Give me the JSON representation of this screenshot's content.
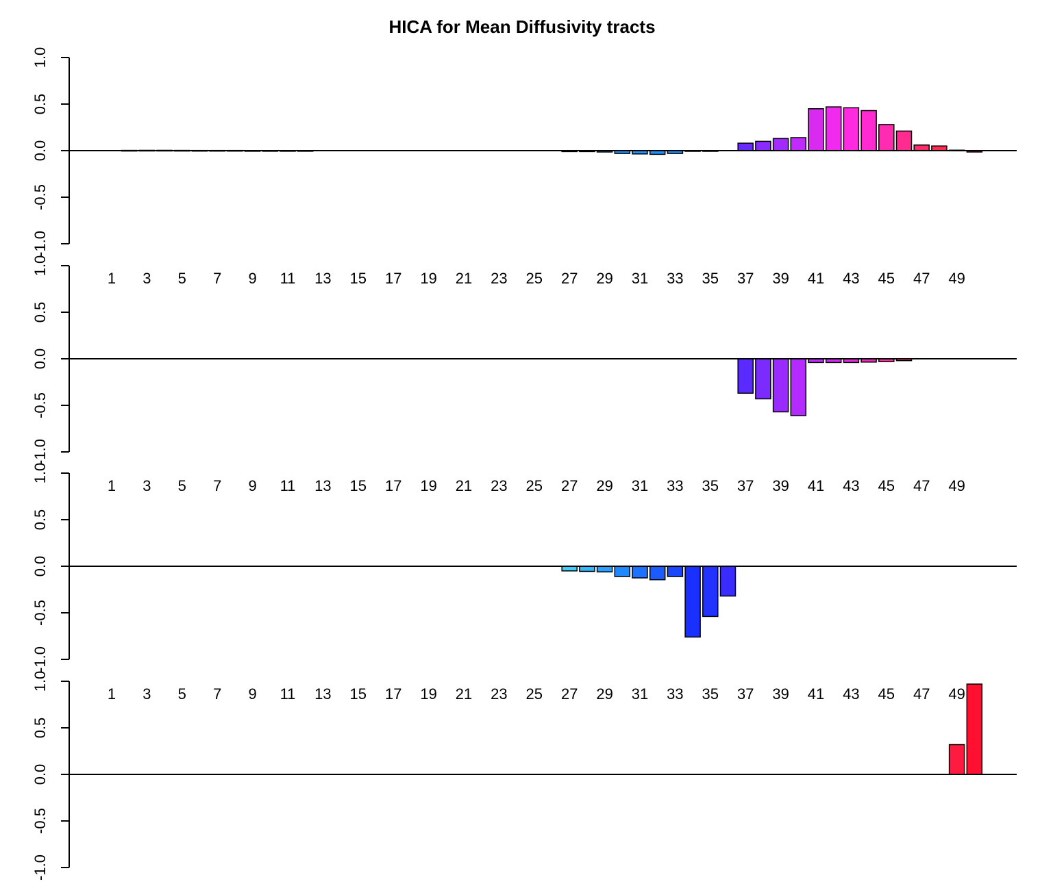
{
  "chart_data": {
    "type": "bar",
    "title": "HICA for  Mean Diffusivity tracts",
    "xlabel": "",
    "ylabel": "",
    "ylim": [
      -1.0,
      1.0
    ],
    "yticks": [
      "-1.0",
      "-0.5",
      "0.0",
      "0.5",
      "1.0"
    ],
    "x_tick_labels": [
      "1",
      "3",
      "5",
      "7",
      "9",
      "11",
      "13",
      "15",
      "17",
      "19",
      "21",
      "23",
      "25",
      "27",
      "29",
      "31",
      "33",
      "35",
      "37",
      "39",
      "41",
      "43",
      "45",
      "47",
      "49"
    ],
    "grid": false,
    "legend": "none",
    "panels": [
      {
        "name": "",
        "values": [
          0,
          0.003,
          0.004,
          0.004,
          0.003,
          0.002,
          0.002,
          0.002,
          0.001,
          0.001,
          0.001,
          0.001,
          0,
          0,
          0,
          0,
          0,
          0,
          0,
          0,
          0,
          0,
          0,
          0,
          0,
          0,
          -0.01,
          -0.01,
          -0.015,
          -0.03,
          -0.035,
          -0.04,
          -0.03,
          -0.005,
          -0.005,
          0,
          0.08,
          0.1,
          0.13,
          0.14,
          0.45,
          0.47,
          0.46,
          0.43,
          0.28,
          0.21,
          0.06,
          0.05,
          0.005,
          -0.015
        ],
        "colors": [
          "#0000ff",
          "#0000ff",
          "#0000ff",
          "#0000ff",
          "#0000ff",
          "#0000ff",
          "#0000ff",
          "#0000ff",
          "#0000ff",
          "#0000ff",
          "#0000ff",
          "#0000ff",
          "#0000ff",
          "#0000ff",
          "#0000ff",
          "#0000ff",
          "#0000ff",
          "#0000ff",
          "#0000ff",
          "#0000ff",
          "#0000ff",
          "#0000ff",
          "#0000ff",
          "#0000ff",
          "#0000ff",
          "#0000ff",
          "#1e90ff",
          "#1e90ff",
          "#1e90ff",
          "#1e90ff",
          "#1e90ff",
          "#1e90ff",
          "#1e90ff",
          "#1e90ff",
          "#1e90ff",
          "#4b2bff",
          "#6a2bff",
          "#8a2bff",
          "#a32bff",
          "#c22bff",
          "#d82bef",
          "#f02bef",
          "#ff2be0",
          "#ff2bd0",
          "#ff2bb0",
          "#ff2b90",
          "#ff2b6a",
          "#ff2b50",
          "#ff1a40",
          "#ff1a30"
        ]
      },
      {
        "name": "",
        "values": [
          0,
          0,
          0,
          0,
          0,
          0,
          0,
          0,
          0,
          0,
          0,
          0,
          0,
          0,
          0,
          0,
          0,
          0,
          0,
          0,
          0,
          0,
          0,
          0,
          0,
          0,
          0,
          0,
          0,
          0,
          0,
          0,
          0,
          0,
          0,
          0,
          -0.37,
          -0.43,
          -0.57,
          -0.61,
          -0.04,
          -0.04,
          -0.04,
          -0.035,
          -0.03,
          -0.02,
          0,
          0,
          0,
          0
        ],
        "colors": [
          "#0000ff",
          "#0000ff",
          "#0000ff",
          "#0000ff",
          "#0000ff",
          "#0000ff",
          "#0000ff",
          "#0000ff",
          "#0000ff",
          "#0000ff",
          "#0000ff",
          "#0000ff",
          "#0000ff",
          "#0000ff",
          "#0000ff",
          "#0000ff",
          "#0000ff",
          "#0000ff",
          "#0000ff",
          "#0000ff",
          "#0000ff",
          "#0000ff",
          "#0000ff",
          "#0000ff",
          "#0000ff",
          "#0000ff",
          "#0000ff",
          "#0000ff",
          "#0000ff",
          "#0000ff",
          "#0000ff",
          "#0000ff",
          "#0000ff",
          "#0000ff",
          "#0000ff",
          "#0000ff",
          "#5a2bff",
          "#7c2bff",
          "#9a2bff",
          "#b32bff",
          "#c22bff",
          "#d02bf0",
          "#e02bd8",
          "#f02bc0",
          "#ff2ba0",
          "#ff2b80",
          "#ff2b60",
          "#ff2b50",
          "#ff1a40",
          "#ff1a30"
        ]
      },
      {
        "name": "",
        "values": [
          0,
          0,
          0,
          0,
          0,
          0,
          0,
          0,
          0,
          0,
          0,
          0,
          0,
          0,
          0,
          0,
          0,
          0,
          0,
          0,
          0,
          0,
          0,
          0,
          0,
          0,
          -0.05,
          -0.055,
          -0.06,
          -0.11,
          -0.125,
          -0.145,
          -0.11,
          -0.76,
          -0.54,
          -0.32,
          0,
          0,
          0,
          0,
          0,
          0,
          0,
          0,
          0,
          0,
          0,
          0,
          0,
          0
        ],
        "colors": [
          "#0000ff",
          "#0000ff",
          "#0000ff",
          "#0000ff",
          "#0000ff",
          "#0000ff",
          "#0000ff",
          "#0000ff",
          "#0000ff",
          "#0000ff",
          "#0000ff",
          "#0000ff",
          "#0000ff",
          "#0000ff",
          "#0000ff",
          "#0000ff",
          "#0000ff",
          "#0000ff",
          "#0000ff",
          "#0000ff",
          "#0000ff",
          "#0000ff",
          "#0000ff",
          "#0000ff",
          "#0000ff",
          "#0000ff",
          "#3ecdff",
          "#35b6ff",
          "#2aa0ff",
          "#1e88ff",
          "#1a72ff",
          "#1a5cff",
          "#1a48ff",
          "#1a30ff",
          "#2233ff",
          "#3a2bff",
          "#0000ff",
          "#0000ff",
          "#0000ff",
          "#0000ff",
          "#0000ff",
          "#0000ff",
          "#0000ff",
          "#0000ff",
          "#0000ff",
          "#0000ff",
          "#0000ff",
          "#0000ff",
          "#0000ff",
          "#0000ff"
        ]
      },
      {
        "name": "",
        "values": [
          0,
          0,
          0,
          0,
          0,
          0,
          0,
          0,
          0,
          0,
          0,
          0,
          0,
          0,
          0,
          0,
          0,
          0,
          0,
          0,
          0,
          0,
          0,
          0,
          0,
          0,
          0,
          0,
          0,
          0,
          0,
          0,
          0,
          0,
          0,
          0,
          0,
          0,
          0,
          0,
          0,
          0,
          0,
          0,
          0,
          0,
          0,
          0,
          0.32,
          0.97
        ],
        "colors": [
          "#0000ff",
          "#0000ff",
          "#0000ff",
          "#0000ff",
          "#0000ff",
          "#0000ff",
          "#0000ff",
          "#0000ff",
          "#0000ff",
          "#0000ff",
          "#0000ff",
          "#0000ff",
          "#0000ff",
          "#0000ff",
          "#0000ff",
          "#0000ff",
          "#0000ff",
          "#0000ff",
          "#0000ff",
          "#0000ff",
          "#0000ff",
          "#0000ff",
          "#0000ff",
          "#0000ff",
          "#0000ff",
          "#0000ff",
          "#0000ff",
          "#0000ff",
          "#0000ff",
          "#0000ff",
          "#0000ff",
          "#0000ff",
          "#0000ff",
          "#0000ff",
          "#0000ff",
          "#0000ff",
          "#0000ff",
          "#0000ff",
          "#0000ff",
          "#0000ff",
          "#0000ff",
          "#0000ff",
          "#0000ff",
          "#0000ff",
          "#0000ff",
          "#0000ff",
          "#0000ff",
          "#0000ff",
          "#ff1a40",
          "#ff1030"
        ]
      }
    ]
  }
}
